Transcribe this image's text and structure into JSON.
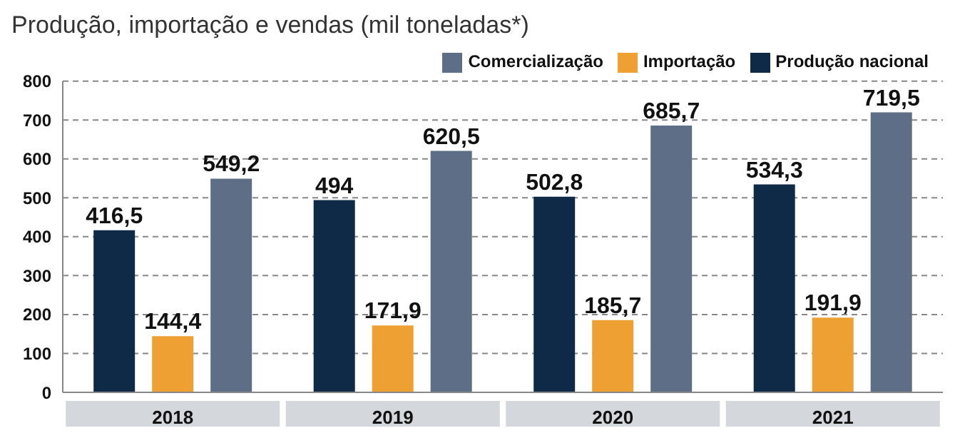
{
  "chart_data": {
    "type": "bar",
    "title": "Produção, importação e vendas (mil toneladas*)",
    "categories": [
      "2018",
      "2019",
      "2020",
      "2021"
    ],
    "series": [
      {
        "name": "Produção nacional",
        "color": "#0e2a47",
        "values": [
          416.5,
          494,
          502.8,
          534.3
        ],
        "value_labels": [
          "416,5",
          "494",
          "502,8",
          "534,3"
        ]
      },
      {
        "name": "Importação",
        "color": "#eea033",
        "values": [
          144.4,
          171.9,
          185.7,
          191.9
        ],
        "value_labels": [
          "144,4",
          "171,9",
          "185,7",
          "191,9"
        ]
      },
      {
        "name": "Comercialização",
        "color": "#5e6e86",
        "values": [
          549.2,
          620.5,
          685.7,
          719.5
        ],
        "value_labels": [
          "549,2",
          "620,5",
          "685,7",
          "719,5"
        ]
      }
    ],
    "ylim": [
      0,
      800
    ],
    "yticks": [
      0,
      100,
      200,
      300,
      400,
      500,
      600,
      700,
      800
    ],
    "grid": "y",
    "legend": "top right"
  }
}
